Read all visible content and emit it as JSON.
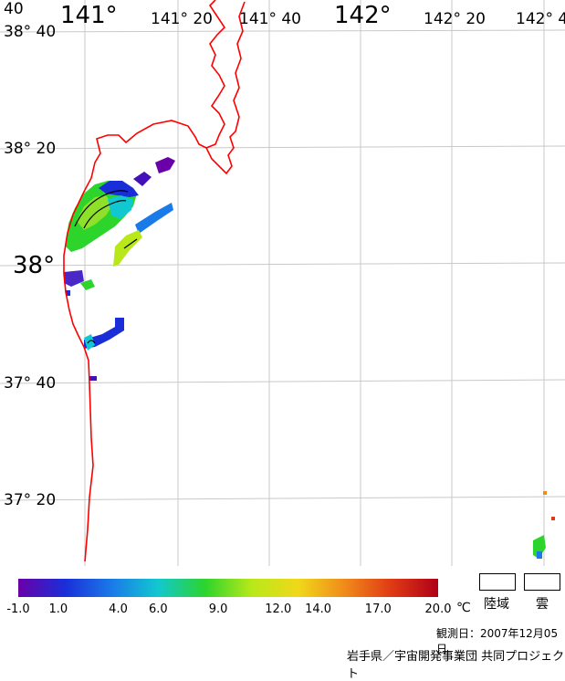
{
  "map": {
    "lon_labels": [
      {
        "text": "141°",
        "size": "big"
      },
      {
        "text": "141° 20",
        "size": "mid"
      },
      {
        "text": "141° 40",
        "size": "mid"
      },
      {
        "text": "142°",
        "size": "big"
      },
      {
        "text": "142° 20",
        "size": "mid"
      },
      {
        "text": "142° 4",
        "size": "mid"
      }
    ],
    "lat_labels": [
      {
        "text": "38° 40",
        "size": "mid",
        "extra": "40"
      },
      {
        "text": "38° 20",
        "size": "mid"
      },
      {
        "text": "38°",
        "size": "big"
      },
      {
        "text": "37° 40",
        "size": "mid"
      },
      {
        "text": "37° 20",
        "size": "mid"
      }
    ],
    "colors": {
      "grid": "#c8c8c8",
      "coast": "#ff0000",
      "contour": "#000000"
    }
  },
  "legend": {
    "colorbar": {
      "min": -1.0,
      "max": 20.0,
      "stops": [
        "#6a00a8",
        "#1a2ed8",
        "#1a7ae8",
        "#12c8d0",
        "#2cd42c",
        "#b8e81a",
        "#f0d81a",
        "#f08a1a",
        "#e03a14",
        "#b00018"
      ],
      "ticks": [
        "-1.0",
        "1.0",
        "4.0",
        "6.0",
        "9.0",
        "12.0",
        "14.0",
        "17.0",
        "20.0"
      ],
      "tick_values": [
        -1.0,
        1.0,
        4.0,
        6.0,
        9.0,
        12.0,
        14.0,
        17.0,
        20.0
      ],
      "unit": "℃"
    },
    "land_label": "陸域",
    "cloud_label": "雲"
  },
  "footer": {
    "date": "観測日：2007年12月05日",
    "credit": "岩手県／宇宙開発事業団 共同プロジェクト"
  }
}
